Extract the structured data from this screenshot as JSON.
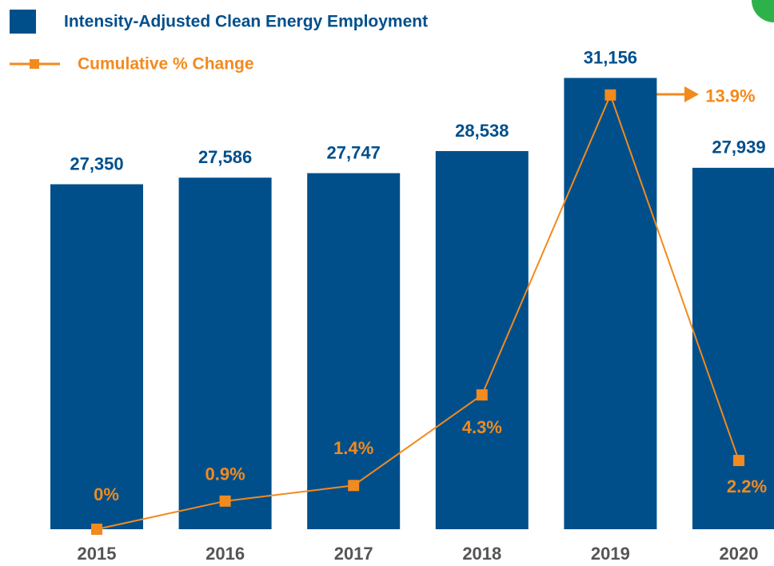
{
  "chart_data": {
    "type": "bar",
    "categories": [
      "2015",
      "2016",
      "2017",
      "2018",
      "2019",
      "2020"
    ],
    "ylim": [
      15000,
      32000
    ],
    "y2lim": [
      0,
      15.2
    ],
    "series": [
      {
        "name": "Intensity-Adjusted Clean Energy Employment",
        "type": "bar",
        "color": "#004f8b",
        "values": [
          27350,
          27586,
          27747,
          28538,
          31156,
          27939
        ],
        "value_labels": [
          "27,350",
          "27,586",
          "27,747",
          "28,538",
          "31,156",
          "27,939"
        ]
      },
      {
        "name": "Cumulative % Change",
        "type": "line",
        "axis": "y2",
        "color": "#f28a1e",
        "values": [
          0,
          0.9,
          1.4,
          4.3,
          13.9,
          2.2
        ],
        "value_labels": [
          "0%",
          "0.9%",
          "1.4%",
          "4.3%",
          "13.9%",
          "2.2%"
        ]
      }
    ]
  }
}
